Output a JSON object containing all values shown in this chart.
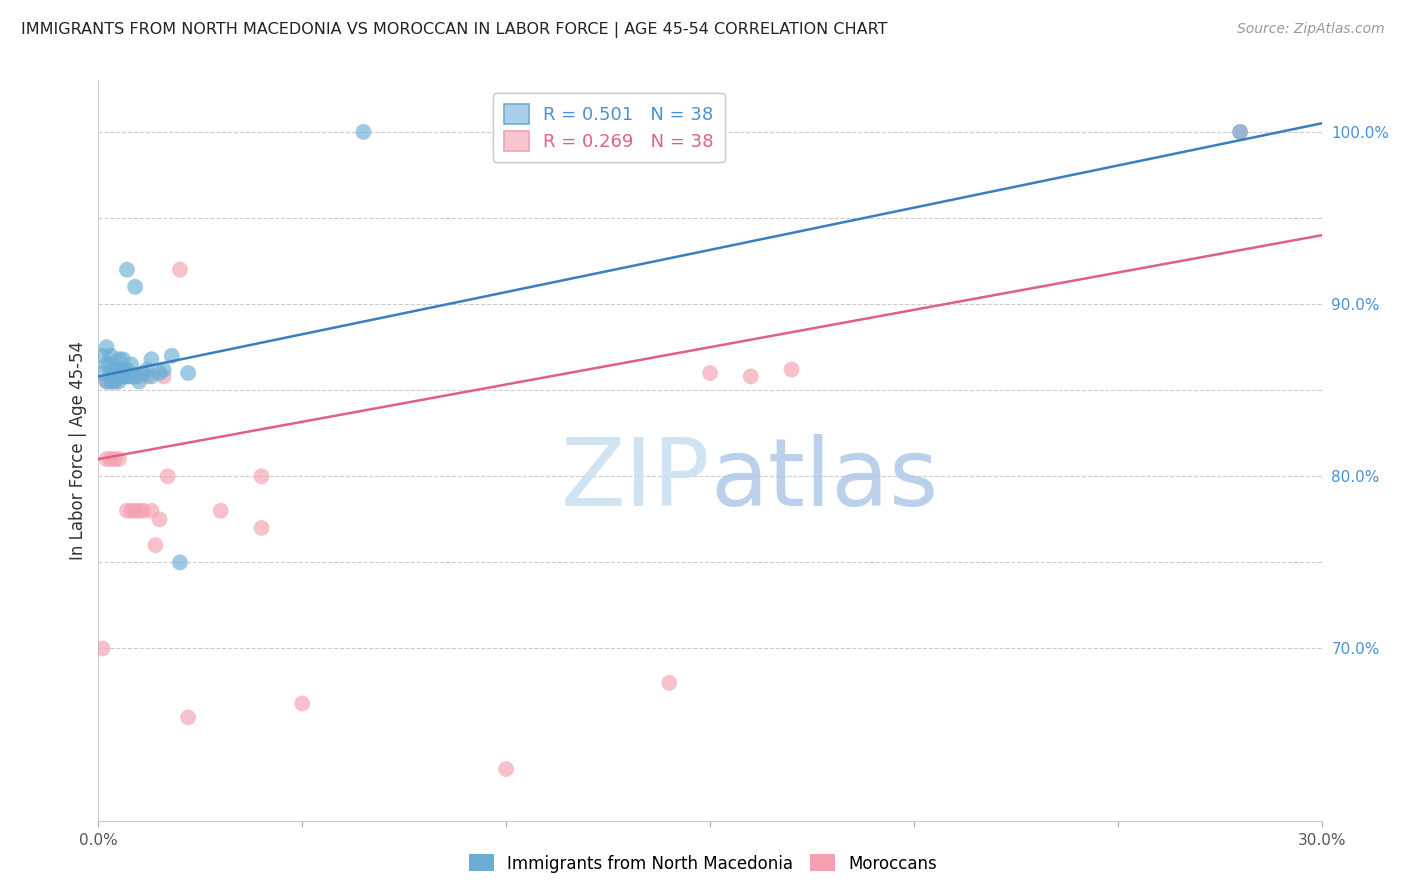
{
  "title": "IMMIGRANTS FROM NORTH MACEDONIA VS MOROCCAN IN LABOR FORCE | AGE 45-54 CORRELATION CHART",
  "source": "Source: ZipAtlas.com",
  "ylabel": "In Labor Force | Age 45-54",
  "x_min": 0.0,
  "x_max": 0.3,
  "y_min": 0.6,
  "y_max": 1.03,
  "x_ticks": [
    0.0,
    0.05,
    0.1,
    0.15,
    0.2,
    0.25,
    0.3
  ],
  "x_tick_labels": [
    "0.0%",
    "",
    "",
    "",
    "",
    "",
    "30.0%"
  ],
  "y_ticks_right": [
    0.7,
    0.8,
    0.9,
    1.0
  ],
  "y_tick_labels_right": [
    "70.0%",
    "80.0%",
    "90.0%",
    "100.0%"
  ],
  "y_grid_lines": [
    0.7,
    0.75,
    0.8,
    0.85,
    0.9,
    0.95,
    1.0
  ],
  "legend_line1": "R = 0.501   N = 38",
  "legend_line2": "R = 0.269   N = 38",
  "legend_bottom_blue": "Immigrants from North Macedonia",
  "legend_bottom_pink": "Moroccans",
  "blue_color": "#6aaed6",
  "pink_color": "#f4a0b0",
  "trendline_blue_color": "#3a7ebf",
  "trendline_pink_color": "#e06080",
  "blue_x": [
    0.001,
    0.001,
    0.002,
    0.002,
    0.002,
    0.003,
    0.003,
    0.003,
    0.003,
    0.004,
    0.004,
    0.004,
    0.005,
    0.005,
    0.005,
    0.005,
    0.006,
    0.006,
    0.006,
    0.007,
    0.007,
    0.007,
    0.008,
    0.008,
    0.009,
    0.009,
    0.01,
    0.011,
    0.012,
    0.013,
    0.013,
    0.015,
    0.016,
    0.018,
    0.02,
    0.022,
    0.065,
    0.28
  ],
  "blue_y": [
    0.86,
    0.87,
    0.855,
    0.865,
    0.875,
    0.855,
    0.86,
    0.865,
    0.87,
    0.855,
    0.858,
    0.862,
    0.855,
    0.858,
    0.862,
    0.868,
    0.858,
    0.862,
    0.868,
    0.858,
    0.862,
    0.92,
    0.858,
    0.865,
    0.858,
    0.91,
    0.855,
    0.86,
    0.862,
    0.858,
    0.868,
    0.86,
    0.862,
    0.87,
    0.75,
    0.86,
    1.0,
    1.0
  ],
  "pink_x": [
    0.001,
    0.002,
    0.002,
    0.003,
    0.003,
    0.004,
    0.004,
    0.005,
    0.005,
    0.006,
    0.006,
    0.007,
    0.007,
    0.008,
    0.008,
    0.009,
    0.009,
    0.01,
    0.01,
    0.011,
    0.012,
    0.013,
    0.014,
    0.015,
    0.016,
    0.017,
    0.02,
    0.022,
    0.03,
    0.04,
    0.04,
    0.05,
    0.1,
    0.14,
    0.15,
    0.16,
    0.17,
    0.28
  ],
  "pink_y": [
    0.7,
    0.855,
    0.81,
    0.855,
    0.81,
    0.855,
    0.81,
    0.858,
    0.81,
    0.858,
    0.862,
    0.78,
    0.858,
    0.78,
    0.858,
    0.78,
    0.858,
    0.78,
    0.858,
    0.78,
    0.858,
    0.78,
    0.76,
    0.775,
    0.858,
    0.8,
    0.92,
    0.66,
    0.78,
    0.77,
    0.8,
    0.668,
    0.63,
    0.68,
    0.86,
    0.858,
    0.862,
    1.0
  ],
  "trendline_blue_x0": 0.0,
  "trendline_blue_y0": 0.858,
  "trendline_blue_x1": 0.3,
  "trendline_blue_y1": 1.005,
  "trendline_pink_x0": 0.0,
  "trendline_pink_y0": 0.81,
  "trendline_pink_x1": 0.3,
  "trendline_pink_y1": 0.94,
  "watermark_zip": "ZIP",
  "watermark_atlas": "atlas",
  "grid_color": "#cccccc",
  "background": "#ffffff"
}
